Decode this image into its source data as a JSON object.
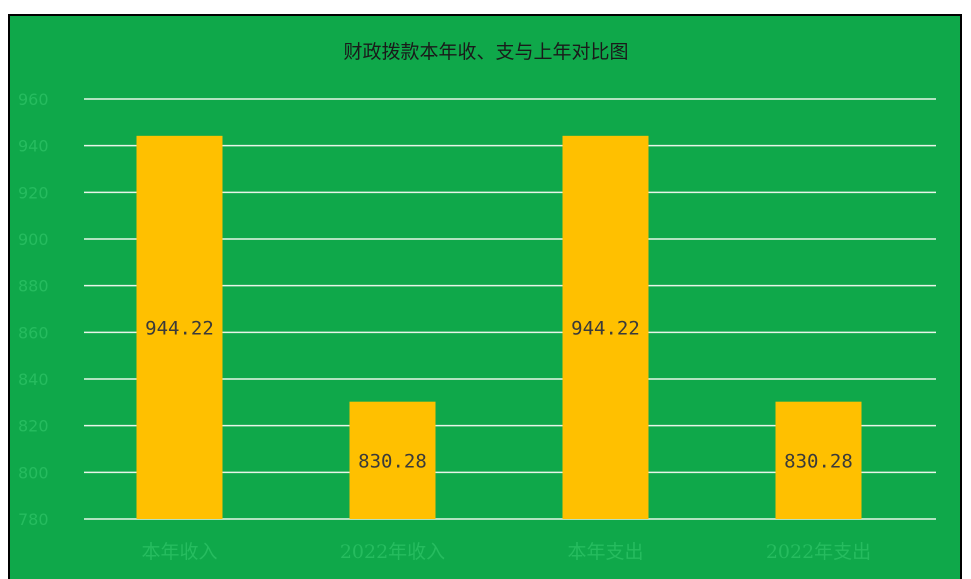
{
  "colors": {
    "background": "#0FA84A",
    "bar": "#FFC000",
    "gridline": "#E8F5E8",
    "tick_text": "#26BC5F",
    "data_label": "#3A3A3A",
    "title": "#1a1a1a",
    "border": "#000000"
  },
  "chart_data": {
    "type": "bar",
    "title": "财政拨款本年收、支与上年对比图",
    "xlabel": "",
    "ylabel": "",
    "categories": [
      "本年收入",
      "2022年收入",
      "本年支出",
      "2022年支出"
    ],
    "values": [
      944.22,
      830.28,
      944.22,
      830.28
    ],
    "data_labels": [
      "944.22",
      "830.28",
      "944.22",
      "830.28"
    ],
    "y_ticks": [
      "780",
      "800",
      "820",
      "840",
      "860",
      "880",
      "900",
      "920",
      "940",
      "960"
    ],
    "ylim": [
      780,
      960
    ],
    "grid": true,
    "legend": "none"
  }
}
